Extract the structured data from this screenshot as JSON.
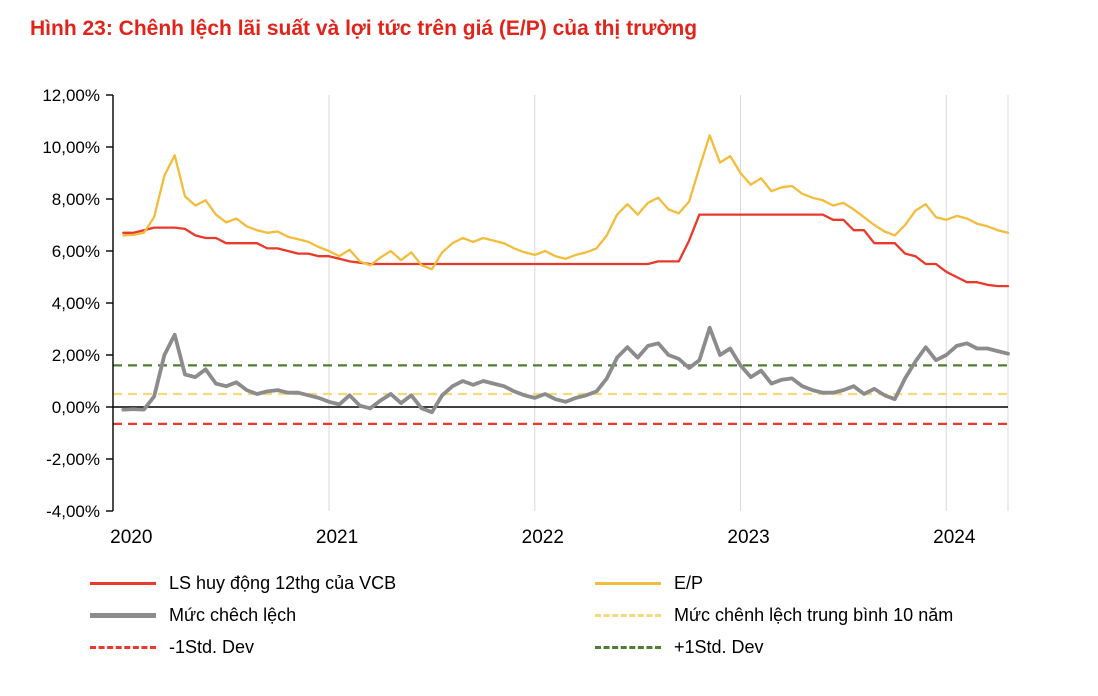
{
  "title": "Hình 23: Chênh lệch lãi suất và lợi tức trên giá (E/P) của thị trường",
  "colors": {
    "title": "#E2231A",
    "red": "#E8392B",
    "yellow": "#F4BC3C",
    "yellow_dashed": "#F8D87C",
    "gray": "#8C8C8C",
    "green": "#507E32",
    "grid": "#D9D9D9",
    "axis": "#000000"
  },
  "legend": {
    "items": [
      {
        "label": "LS huy động 12thg của VCB",
        "style": "solid",
        "color_key": "red"
      },
      {
        "label": "E/P",
        "style": "solid",
        "color_key": "yellow"
      },
      {
        "label": "Mức chêch lệch",
        "style": "solid-thick",
        "color_key": "gray"
      },
      {
        "label": "Mức chênh lệch trung bình 10 năm",
        "style": "dashed",
        "color_key": "yellow_dashed"
      },
      {
        "label": "-1Std. Dev",
        "style": "dashed",
        "color_key": "red"
      },
      {
        "label": "+1Std. Dev",
        "style": "dashed",
        "color_key": "green"
      }
    ]
  },
  "chart_data": {
    "type": "line",
    "title": "Hình 23: Chênh lệch lãi suất và lợi tức trên giá (E/P) của thị trường",
    "xlabel": "",
    "ylabel": "",
    "xlim": [
      2019.95,
      2024.3
    ],
    "ylim": [
      -4,
      12
    ],
    "x_ticks": [
      2020,
      2021,
      2022,
      2023,
      2024
    ],
    "x_tick_labels": [
      "2020",
      "2021",
      "2022",
      "2023",
      "2024"
    ],
    "y_ticks": [
      12,
      10,
      8,
      6,
      4,
      2,
      0,
      -2,
      -4
    ],
    "y_tick_labels": [
      "12,00%",
      "10,00%",
      "8,00%",
      "6,00%",
      "4,00%",
      "2,00%",
      "0,00%",
      "-2,00%",
      "-4,00%"
    ],
    "grid": "vertical-year-lines",
    "legend_position": "bottom",
    "x": [
      2020,
      2020.05,
      2020.1,
      2020.15,
      2020.2,
      2020.25,
      2020.3,
      2020.35,
      2020.4,
      2020.45,
      2020.5,
      2020.55,
      2020.6,
      2020.65,
      2020.7,
      2020.75,
      2020.8,
      2020.85,
      2020.9,
      2020.95,
      2021,
      2021.05,
      2021.1,
      2021.15,
      2021.2,
      2021.25,
      2021.3,
      2021.35,
      2021.4,
      2021.45,
      2021.5,
      2021.55,
      2021.6,
      2021.65,
      2021.7,
      2021.75,
      2021.8,
      2021.85,
      2021.9,
      2021.95,
      2022,
      2022.05,
      2022.1,
      2022.15,
      2022.2,
      2022.25,
      2022.3,
      2022.35,
      2022.4,
      2022.45,
      2022.5,
      2022.55,
      2022.6,
      2022.65,
      2022.7,
      2022.75,
      2022.8,
      2022.85,
      2022.9,
      2022.95,
      2023,
      2023.05,
      2023.1,
      2023.15,
      2023.2,
      2023.25,
      2023.3,
      2023.35,
      2023.4,
      2023.45,
      2023.5,
      2023.55,
      2023.6,
      2023.65,
      2023.7,
      2023.75,
      2023.8,
      2023.85,
      2023.9,
      2023.95,
      2024,
      2024.05,
      2024.1,
      2024.15,
      2024.2,
      2024.25,
      2024.3
    ],
    "series": [
      {
        "name": "LS huy động 12thg của VCB",
        "color_key": "red",
        "values": [
          6.7,
          6.7,
          6.8,
          6.9,
          6.9,
          6.9,
          6.85,
          6.6,
          6.5,
          6.5,
          6.3,
          6.3,
          6.3,
          6.3,
          6.1,
          6.1,
          6.0,
          5.9,
          5.9,
          5.8,
          5.8,
          5.7,
          5.6,
          5.55,
          5.5,
          5.5,
          5.5,
          5.5,
          5.5,
          5.5,
          5.5,
          5.5,
          5.5,
          5.5,
          5.5,
          5.5,
          5.5,
          5.5,
          5.5,
          5.5,
          5.5,
          5.5,
          5.5,
          5.5,
          5.5,
          5.5,
          5.5,
          5.5,
          5.5,
          5.5,
          5.5,
          5.5,
          5.6,
          5.6,
          5.6,
          6.4,
          7.4,
          7.4,
          7.4,
          7.4,
          7.4,
          7.4,
          7.4,
          7.4,
          7.4,
          7.4,
          7.4,
          7.4,
          7.4,
          7.2,
          7.2,
          6.8,
          6.8,
          6.3,
          6.3,
          6.3,
          5.9,
          5.8,
          5.5,
          5.5,
          5.2,
          5.0,
          4.8,
          4.8,
          4.7,
          4.65,
          4.65
        ]
      },
      {
        "name": "E/P",
        "color_key": "yellow",
        "values": [
          6.6,
          6.62,
          6.7,
          7.3,
          8.9,
          9.68,
          8.1,
          7.75,
          7.95,
          7.4,
          7.1,
          7.25,
          6.95,
          6.8,
          6.7,
          6.75,
          6.55,
          6.45,
          6.35,
          6.15,
          6.0,
          5.8,
          6.05,
          5.6,
          5.45,
          5.75,
          6.0,
          5.65,
          5.95,
          5.45,
          5.3,
          5.95,
          6.3,
          6.5,
          6.35,
          6.5,
          6.4,
          6.3,
          6.1,
          5.95,
          5.85,
          6.0,
          5.8,
          5.7,
          5.85,
          5.95,
          6.1,
          6.6,
          7.4,
          7.8,
          7.4,
          7.85,
          8.05,
          7.6,
          7.45,
          7.9,
          9.2,
          10.45,
          9.4,
          9.65,
          9.0,
          8.55,
          8.8,
          8.3,
          8.45,
          8.5,
          8.2,
          8.05,
          7.95,
          7.75,
          7.85,
          7.6,
          7.3,
          7.0,
          6.75,
          6.6,
          7.0,
          7.55,
          7.8,
          7.3,
          7.2,
          7.35,
          7.25,
          7.05,
          6.95,
          6.8,
          6.7
        ]
      },
      {
        "name": "Mức chêch lệch",
        "color_key": "gray",
        "values": [
          -0.1,
          -0.08,
          -0.1,
          0.4,
          2.0,
          2.78,
          1.25,
          1.15,
          1.45,
          0.9,
          0.8,
          0.95,
          0.65,
          0.5,
          0.6,
          0.65,
          0.55,
          0.55,
          0.45,
          0.35,
          0.2,
          0.1,
          0.45,
          0.05,
          -0.05,
          0.25,
          0.5,
          0.15,
          0.45,
          -0.05,
          -0.2,
          0.45,
          0.8,
          1.0,
          0.85,
          1.0,
          0.9,
          0.8,
          0.6,
          0.45,
          0.35,
          0.5,
          0.3,
          0.2,
          0.35,
          0.45,
          0.6,
          1.1,
          1.9,
          2.3,
          1.9,
          2.35,
          2.45,
          2.0,
          1.85,
          1.5,
          1.8,
          3.05,
          2.0,
          2.25,
          1.6,
          1.15,
          1.4,
          0.9,
          1.05,
          1.1,
          0.8,
          0.65,
          0.55,
          0.55,
          0.65,
          0.8,
          0.5,
          0.7,
          0.45,
          0.3,
          1.1,
          1.75,
          2.3,
          1.8,
          2.0,
          2.35,
          2.45,
          2.25,
          2.25,
          2.15,
          2.05
        ]
      }
    ],
    "reference_lines": [
      {
        "name": "Mức chênh lệch trung bình 10 năm",
        "value": 0.5,
        "color_key": "yellow_dashed",
        "style": "dashed"
      },
      {
        "name": "-1Std. Dev",
        "value": -0.65,
        "color_key": "red",
        "style": "dashed"
      },
      {
        "name": "+1Std. Dev",
        "value": 1.6,
        "color_key": "green",
        "style": "dashed"
      }
    ]
  }
}
